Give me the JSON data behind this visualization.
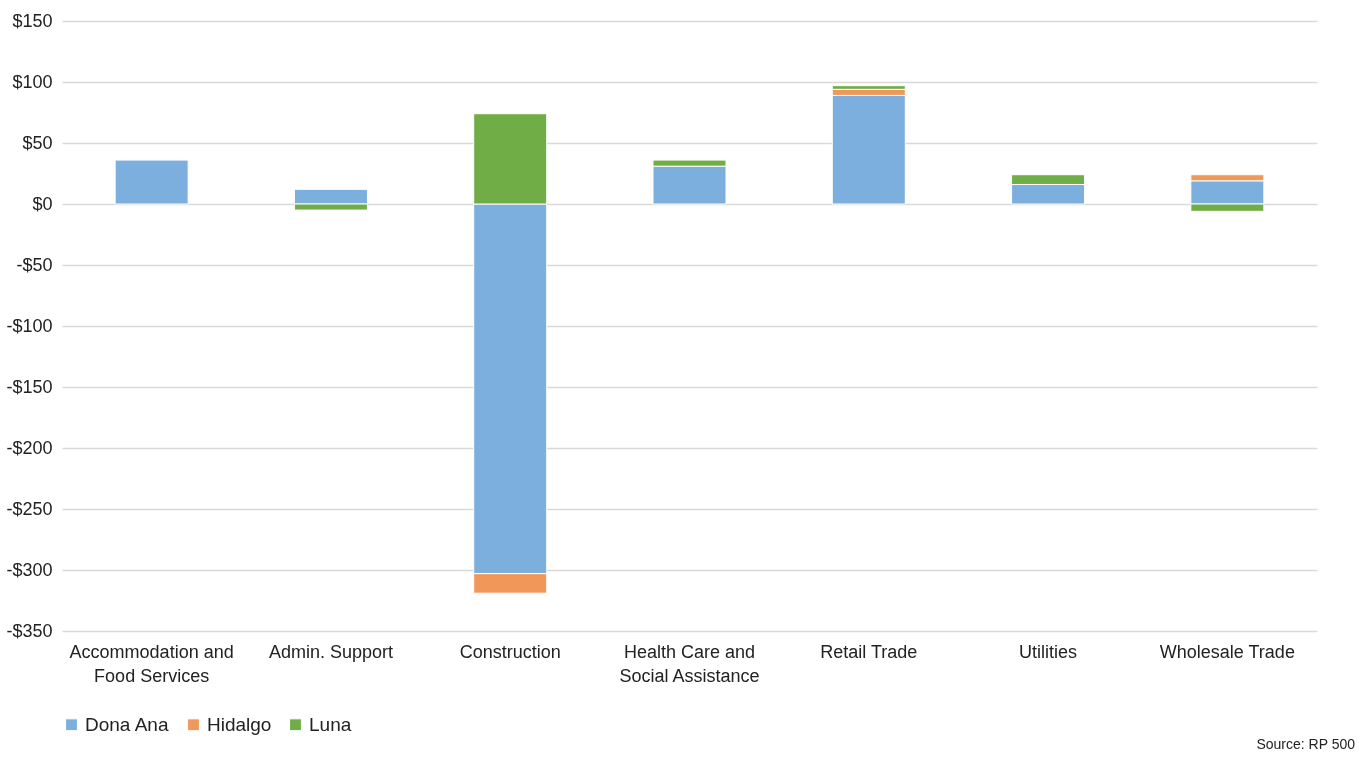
{
  "chart_data": {
    "type": "bar",
    "stacked": true,
    "categories": [
      "Accommodation and Food Services",
      "Admin. Support",
      "Construction",
      "Health Care and Social Assistance",
      "Retail Trade",
      "Utilities",
      "Wholesale Trade"
    ],
    "series": [
      {
        "name": "Dona Ana",
        "color": "#7cafdd",
        "values": [
          36,
          12,
          -303,
          31,
          89,
          16,
          19
        ]
      },
      {
        "name": "Hidalgo",
        "color": "#f1975a",
        "values": [
          null,
          null,
          -16,
          null,
          5,
          null,
          5
        ]
      },
      {
        "name": "Luna",
        "color": "#70ad47",
        "values": [
          null,
          -5,
          74,
          5,
          3,
          8,
          -6
        ]
      }
    ],
    "ylim": [
      -350,
      150
    ],
    "yticks": [
      {
        "value": -350,
        "label": "-$350"
      },
      {
        "value": -300,
        "label": "-$300"
      },
      {
        "value": -250,
        "label": "-$250"
      },
      {
        "value": -200,
        "label": "-$200"
      },
      {
        "value": -150,
        "label": "-$150"
      },
      {
        "value": -100,
        "label": "-$100"
      },
      {
        "value": -50,
        "label": "-$50"
      },
      {
        "value": 0,
        "label": "$0"
      },
      {
        "value": 50,
        "label": "$50"
      },
      {
        "value": 100,
        "label": "$100"
      },
      {
        "value": 150,
        "label": "$150"
      }
    ],
    "grid": "y",
    "legend": "bottom",
    "annotations": [
      "Source: RP 500"
    ]
  }
}
